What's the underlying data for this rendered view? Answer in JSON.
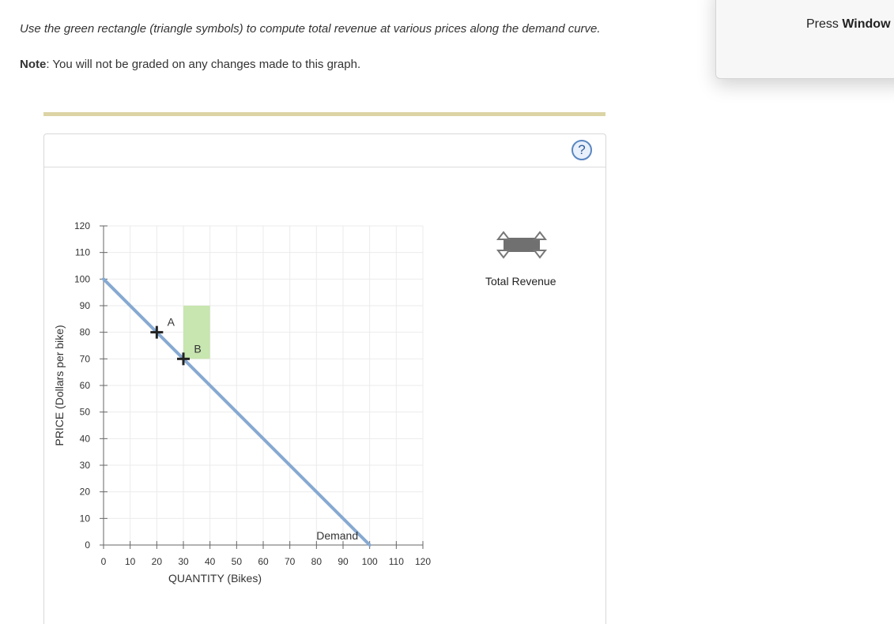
{
  "header": {
    "instructions": "Use the green rectangle (triangle symbols) to compute total revenue at various prices along the demand curve.",
    "note_label": "Note",
    "note_text": ": You will not be graded on any changes made to this graph."
  },
  "panel": {
    "help_label": "?",
    "tool_label": "Total Revenue"
  },
  "popup": {
    "prefix": "Press ",
    "bold": "Window"
  },
  "colors": {
    "demand_line": "#86a9d1",
    "revenue_rect": "#c8e6b0",
    "accent_bar": "#ddd4a6",
    "tool_fill": "#707070"
  },
  "chart_data": {
    "type": "line",
    "xlabel": "QUANTITY (Bikes)",
    "ylabel": "PRICE (Dollars per bike)",
    "xlim": [
      0,
      120
    ],
    "ylim": [
      0,
      120
    ],
    "x_ticks": [
      0,
      10,
      20,
      30,
      40,
      50,
      60,
      70,
      80,
      90,
      100,
      110,
      120
    ],
    "y_ticks": [
      0,
      10,
      20,
      30,
      40,
      50,
      60,
      70,
      80,
      90,
      100,
      110,
      120
    ],
    "grid": true,
    "series": [
      {
        "name": "Demand",
        "points": [
          [
            0,
            100
          ],
          [
            100,
            0
          ]
        ]
      }
    ],
    "points": [
      {
        "label": "A",
        "x": 20,
        "y": 80
      },
      {
        "label": "B",
        "x": 30,
        "y": 70
      }
    ],
    "revenue_rect": {
      "x0": 30,
      "x1": 40,
      "y0": 70,
      "y1": 90
    }
  }
}
